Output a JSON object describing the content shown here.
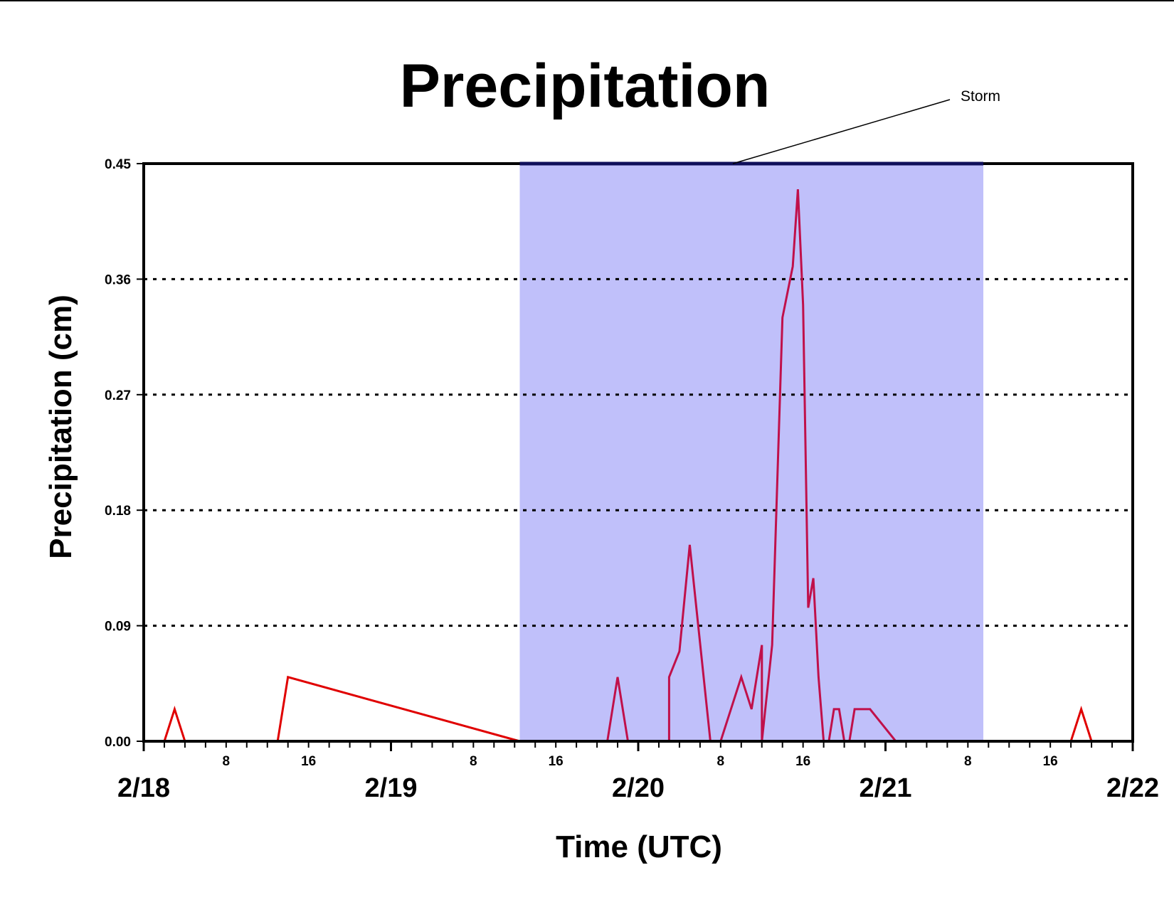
{
  "chart_data": {
    "type": "line",
    "title": "Precipitation",
    "xlabel": "Time (UTC)",
    "ylabel": "Precipitation (cm)",
    "ylim": [
      0,
      0.45
    ],
    "yticks": [
      "0.00",
      "0.09",
      "0.18",
      "0.27",
      "0.36",
      "0.45"
    ],
    "xlim_hours": [
      0,
      96
    ],
    "x_day_labels": [
      "2/18",
      "2/19",
      "2/20",
      "2/21",
      "2/22"
    ],
    "x_hour_labels": [
      "8",
      "16"
    ],
    "grid": "horizontal dotted",
    "annotation": {
      "text": "Storm",
      "start_hour": 36.5,
      "end_hour": 81.5,
      "color": "#c0c0fa"
    },
    "series": [
      {
        "color": "#e00000",
        "x": [
          0,
          2,
          3,
          4,
          12,
          13,
          14,
          36.5
        ],
        "y": [
          0,
          0,
          0.025,
          0,
          0,
          0,
          0.05,
          0
        ]
      },
      {
        "color": "#c0104a",
        "x": [
          36.5,
          45,
          46,
          47,
          51,
          51,
          52,
          53,
          55,
          56,
          57,
          58,
          59,
          60,
          60,
          61,
          62,
          63,
          63.5,
          64,
          64.5,
          65,
          65.5,
          66,
          66.5,
          67,
          67.5,
          68,
          68.5,
          69,
          70,
          70.5,
          73,
          74,
          81.5
        ],
        "y": [
          0,
          0,
          0.05,
          0,
          0,
          0.05,
          0.07,
          0.153,
          0,
          0,
          0.025,
          0.05,
          0.025,
          0.075,
          0,
          0.075,
          0.33,
          0.37,
          0.43,
          0.34,
          0.104,
          0.127,
          0.05,
          0,
          0,
          0.025,
          0.025,
          0,
          0,
          0.025,
          0.025,
          0.025,
          0,
          0,
          0
        ]
      },
      {
        "color": "#e00000",
        "x": [
          81.5,
          90,
          91,
          92,
          96
        ],
        "y": [
          0,
          0,
          0.025,
          0,
          0
        ]
      }
    ]
  }
}
